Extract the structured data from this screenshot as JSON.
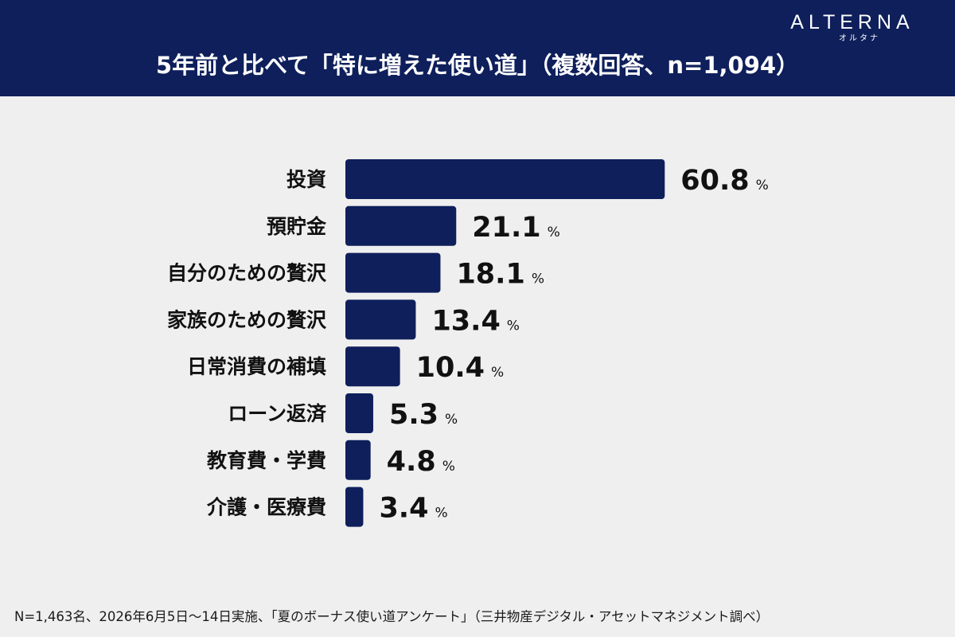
{
  "header": {
    "title": "5年前と比べて「特に増えた使い道」（複数回答、n=1,094）",
    "logo_main": "ALTERNA",
    "logo_sub": "オルタナ"
  },
  "colors": {
    "header_bg": "#0e1f5b",
    "bar": "#0e1f5b",
    "background": "#efefef"
  },
  "chart_data": {
    "type": "bar",
    "orientation": "horizontal",
    "title": "5年前と比べて「特に増えた使い道」（複数回答、n=1,094）",
    "categories": [
      "投資",
      "預貯金",
      "自分のための贅沢",
      "家族のための贅沢",
      "日常消費の補填",
      "ローン返済",
      "教育費・学費",
      "介護・医療費"
    ],
    "values": [
      60.8,
      21.1,
      18.1,
      13.4,
      10.4,
      5.3,
      4.8,
      3.4
    ],
    "unit": "%",
    "xlim": [
      0,
      100
    ],
    "grid": false,
    "legend": "none"
  },
  "footer": {
    "note": "N=1,463名、2026年6月5日〜14日実施、「夏のボーナス使い道アンケート」（三井物産デジタル・アセットマネジメント調べ）"
  }
}
